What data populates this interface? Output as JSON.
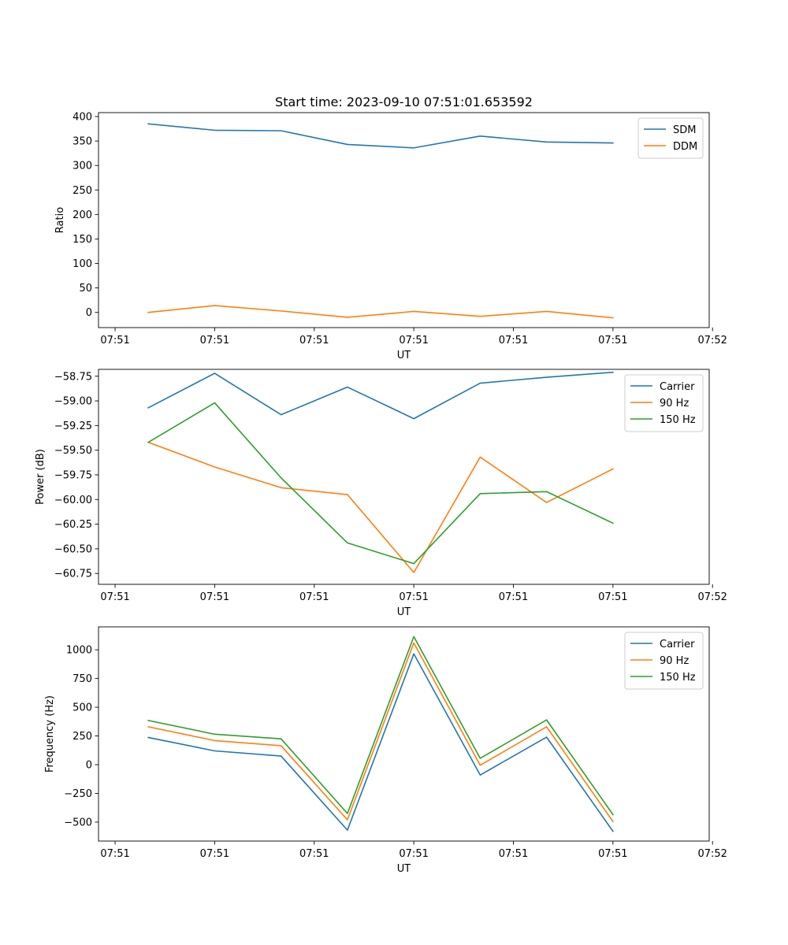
{
  "chart_data": [
    {
      "type": "line",
      "title": "Start time: 2023-09-10 07:51:01.653592",
      "xlabel": "UT",
      "ylabel": "Ratio",
      "x_index": [
        0,
        1,
        2,
        3,
        4,
        5,
        6,
        7
      ],
      "xlim": [
        -0.75,
        8.45
      ],
      "ylim": [
        -31,
        408
      ],
      "xticks": [
        -0.5,
        1.0,
        2.5,
        4.0,
        5.5,
        7.0,
        8.5
      ],
      "xtick_labels": [
        "07:51",
        "07:51",
        "07:51",
        "07:51",
        "07:51",
        "07:51",
        "07:52"
      ],
      "yticks": [
        0,
        50,
        100,
        150,
        200,
        250,
        300,
        350,
        400
      ],
      "ytick_labels": [
        "0",
        "50",
        "100",
        "150",
        "200",
        "250",
        "300",
        "350",
        "400"
      ],
      "legend_position": "top-right",
      "series": [
        {
          "name": "SDM",
          "color": "#1f77b4",
          "values": [
            385,
            372,
            371,
            343,
            336,
            360,
            348,
            346
          ]
        },
        {
          "name": "DDM",
          "color": "#ff7f0e",
          "values": [
            0,
            14,
            3,
            -10,
            2,
            -8,
            2,
            -11
          ]
        }
      ]
    },
    {
      "type": "line",
      "title": "",
      "xlabel": "UT",
      "ylabel": "Power (dB)",
      "x_index": [
        0,
        1,
        2,
        3,
        4,
        5,
        6,
        7
      ],
      "xlim": [
        -0.75,
        8.45
      ],
      "ylim": [
        -60.86,
        -58.68
      ],
      "xticks": [
        -0.5,
        1.0,
        2.5,
        4.0,
        5.5,
        7.0,
        8.5
      ],
      "xtick_labels": [
        "07:51",
        "07:51",
        "07:51",
        "07:51",
        "07:51",
        "07:51",
        "07:52"
      ],
      "yticks": [
        -60.75,
        -60.5,
        -60.25,
        -60.0,
        -59.75,
        -59.5,
        -59.25,
        -59.0,
        -58.75
      ],
      "ytick_labels": [
        "−60.75",
        "−60.50",
        "−60.25",
        "−60.00",
        "−59.75",
        "−59.50",
        "−59.25",
        "−59.00",
        "−58.75"
      ],
      "legend_position": "top-right",
      "series": [
        {
          "name": "Carrier",
          "color": "#1f77b4",
          "values": [
            -59.07,
            -58.72,
            -59.14,
            -58.86,
            -59.18,
            -58.82,
            -58.76,
            -58.71
          ]
        },
        {
          "name": "90 Hz",
          "color": "#ff7f0e",
          "values": [
            -59.42,
            -59.67,
            -59.88,
            -59.95,
            -60.74,
            -59.57,
            -60.03,
            -59.69
          ]
        },
        {
          "name": "150 Hz",
          "color": "#2ca02c",
          "values": [
            -59.42,
            -59.02,
            -59.78,
            -60.44,
            -60.65,
            -59.94,
            -59.92,
            -60.24
          ]
        }
      ]
    },
    {
      "type": "line",
      "title": "",
      "xlabel": "UT",
      "ylabel": "Frequency (Hz)",
      "x_index": [
        0,
        1,
        2,
        3,
        4,
        5,
        6,
        7
      ],
      "xlim": [
        -0.75,
        8.45
      ],
      "ylim": [
        -665,
        1200
      ],
      "xticks": [
        -0.5,
        1.0,
        2.5,
        4.0,
        5.5,
        7.0,
        8.5
      ],
      "xtick_labels": [
        "07:51",
        "07:51",
        "07:51",
        "07:51",
        "07:51",
        "07:51",
        "07:52"
      ],
      "yticks": [
        -500,
        -250,
        0,
        250,
        500,
        750,
        1000
      ],
      "ytick_labels": [
        "−500",
        "−250",
        "0",
        "250",
        "500",
        "750",
        "1000"
      ],
      "legend_position": "top-right",
      "series": [
        {
          "name": "Carrier",
          "color": "#1f77b4",
          "values": [
            237,
            120,
            75,
            -570,
            965,
            -90,
            240,
            -580
          ]
        },
        {
          "name": "90 Hz",
          "color": "#ff7f0e",
          "values": [
            330,
            210,
            165,
            -480,
            1060,
            -5,
            330,
            -495
          ]
        },
        {
          "name": "150 Hz",
          "color": "#2ca02c",
          "values": [
            385,
            265,
            225,
            -425,
            1115,
            55,
            390,
            -435
          ]
        }
      ]
    }
  ]
}
